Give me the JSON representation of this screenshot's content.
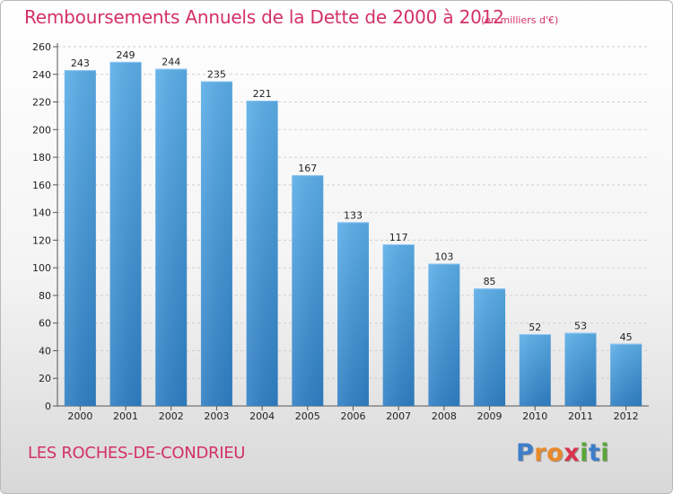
{
  "chart_data": {
    "type": "bar",
    "title": "Remboursements Annuels de la Dette de 2000 à 2012",
    "subtitle": "(en milliers d'€)",
    "categories": [
      "2000",
      "2001",
      "2002",
      "2003",
      "2004",
      "2005",
      "2006",
      "2007",
      "2008",
      "2009",
      "2010",
      "2011",
      "2012"
    ],
    "values": [
      243,
      249,
      244,
      235,
      221,
      167,
      133,
      117,
      103,
      85,
      52,
      53,
      45
    ],
    "ylim": [
      0,
      260
    ],
    "yticks": [
      0,
      20,
      40,
      60,
      80,
      100,
      120,
      140,
      160,
      180,
      200,
      220,
      240,
      260
    ],
    "xlabel": "",
    "ylabel": "",
    "grid": true,
    "bar_color": "#4f9fe0"
  },
  "footer": {
    "commune": "LES ROCHES-DE-CONDRIEU",
    "logo_letters": [
      "P",
      "r",
      "o",
      "x",
      "i",
      "t",
      "i"
    ],
    "logo_colors": [
      "#3d7ec9",
      "#e8892b",
      "#e8892b",
      "#d9334e",
      "#5aa63b",
      "#3d7ec9",
      "#5aa63b"
    ]
  }
}
